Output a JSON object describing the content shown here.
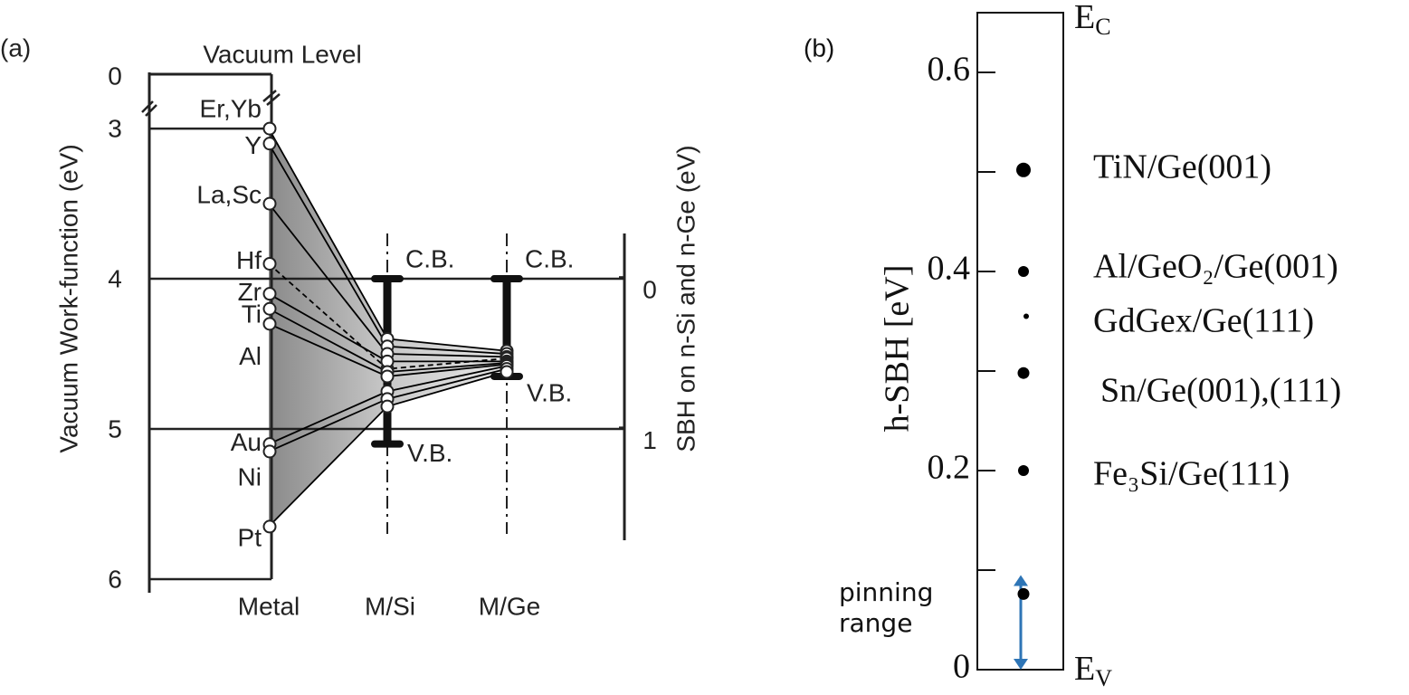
{
  "chart_data": [
    {
      "type": "band-diagram",
      "panel_label": "(a)",
      "title": "Vacuum Level",
      "ylabel": "Vacuum Work-function (eV)",
      "y2label": "SBH on n-Si and n-Ge (eV)",
      "categories": [
        "Metal",
        "M/Si",
        "M/Ge"
      ],
      "ylim": [
        2.65,
        6
      ],
      "yticks": [
        0,
        3,
        4,
        5,
        6
      ],
      "axis_break": true,
      "y2lim": [
        -0.29,
        1.75
      ],
      "y2ticks": [
        0,
        1
      ],
      "series": [
        {
          "name": "Er,Yb",
          "values": [
            3.0,
            4.4,
            4.48
          ]
        },
        {
          "name": "Y",
          "values": [
            3.1,
            4.45,
            4.5
          ]
        },
        {
          "name": "La,Sc",
          "values": [
            3.5,
            4.5,
            4.52
          ]
        },
        {
          "name": "Hf",
          "values": [
            3.9,
            4.6,
            4.53
          ],
          "style": "dashed"
        },
        {
          "name": "Zr",
          "values": [
            4.1,
            4.55,
            4.55
          ]
        },
        {
          "name": "Ti",
          "values": [
            4.2,
            4.62,
            4.56
          ]
        },
        {
          "name": "Al",
          "values": [
            4.3,
            4.65,
            4.57
          ]
        },
        {
          "name": "Au",
          "values": [
            5.1,
            4.75,
            4.58
          ]
        },
        {
          "name": "Ni",
          "values": [
            5.15,
            4.8,
            4.6
          ]
        },
        {
          "name": "Pt",
          "values": [
            5.65,
            4.85,
            4.62
          ]
        }
      ],
      "conduction_band": {
        "name": "C.B.",
        "values": [
          null,
          4.0,
          4.0
        ]
      },
      "valence_band": {
        "name": "V.B.",
        "values": [
          null,
          5.1,
          4.65
        ]
      },
      "color": "#000000",
      "fill": "#9a9a9a"
    },
    {
      "type": "scatter",
      "panel_label": "(b)",
      "ylabel": "h-SBH [eV]",
      "ylim": [
        0,
        0.66
      ],
      "yticks": [
        0,
        0.2,
        0.4,
        0.6
      ],
      "minor_yticks": [
        0.1,
        0.3,
        0.5
      ],
      "labels": [
        "TiN/Ge(001)",
        "Al/GeO₂/Ge(001)",
        "GdGex/Ge(111)",
        "Sn/Ge(001),(111)",
        "Fe₃Si/Ge(111)",
        null
      ],
      "values": [
        0.502,
        0.4,
        0.355,
        0.298,
        0.2,
        0.076
      ],
      "point_sizes": [
        8,
        6,
        3,
        6.5,
        6,
        6.5
      ],
      "color": "#000000",
      "top_label": {
        "main": "E",
        "sub": "C"
      },
      "bottom_label": {
        "main": "E",
        "sub": "V"
      },
      "pinning_range": [
        0,
        0.095
      ],
      "arrow_color": "#2e75b6",
      "annotation": [
        "pinning",
        "range"
      ],
      "annotation_color": "#1a1ae6"
    }
  ]
}
